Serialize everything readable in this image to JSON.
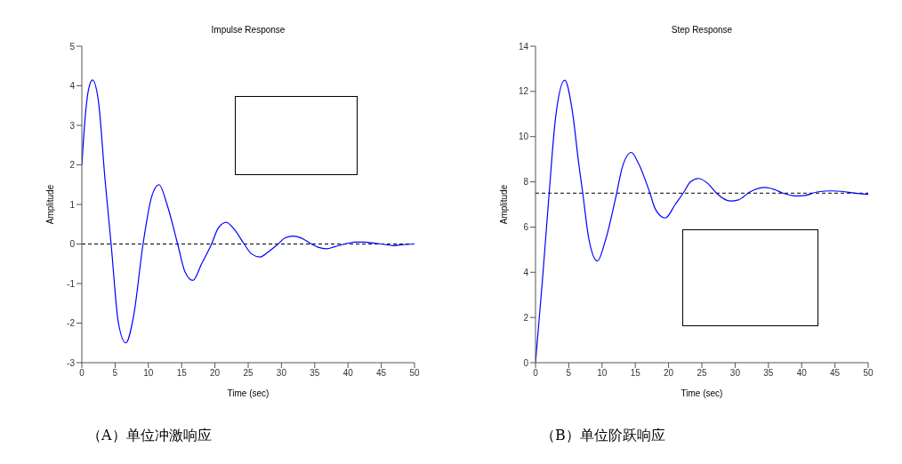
{
  "chart_data": [
    {
      "type": "line",
      "title": "Impulse Response",
      "xlabel": "Time (sec)",
      "ylabel": "Amplitude",
      "annotations": [
        "（A）单位冲激响应"
      ],
      "x": [
        0,
        0.5,
        1,
        1.6,
        2.5,
        3.5,
        4.4,
        5.5,
        6.6,
        7.8,
        9.2,
        10.5,
        11.6,
        12.8,
        14.4,
        15.5,
        16.7,
        18,
        19.5,
        20.5,
        21.7,
        23,
        24.4,
        25.5,
        26.8,
        28,
        29.5,
        30.5,
        31.8,
        33,
        34.5,
        35.5,
        36.8,
        38,
        39.5,
        41,
        42.5,
        44,
        45,
        46.8,
        48,
        50
      ],
      "series": [
        {
          "color": "#0000ff",
          "values": [
            2.0,
            3.2,
            3.9,
            4.15,
            3.6,
            1.6,
            0,
            -2.0,
            -2.5,
            -1.8,
            0,
            1.2,
            1.5,
            1.0,
            0,
            -0.7,
            -0.92,
            -0.5,
            0,
            0.4,
            0.55,
            0.35,
            0,
            -0.25,
            -0.33,
            -0.2,
            0,
            0.15,
            0.2,
            0.15,
            0,
            -0.08,
            -0.12,
            -0.07,
            0,
            0.05,
            0.05,
            0.02,
            0,
            -0.04,
            -0.02,
            0
          ]
        }
      ],
      "xlim": [
        0,
        50
      ],
      "xticks": [
        0,
        5,
        10,
        15,
        20,
        25,
        30,
        35,
        40,
        45,
        50
      ],
      "ylim": [
        -3,
        5
      ],
      "yticks": [
        -3,
        -2,
        -1,
        0,
        1,
        2,
        3,
        4,
        5
      ],
      "ref_lines": [
        {
          "axis": "y",
          "value": 0,
          "color": "#000000",
          "line_style": "dashed"
        }
      ],
      "grid": false,
      "legend": false,
      "marker": "none",
      "line_style": "solid"
    },
    {
      "type": "line",
      "title": "Step Response",
      "xlabel": "Time (sec)",
      "ylabel": "Amplitude",
      "annotations": [
        "（B）单位阶跃响应"
      ],
      "x": [
        0,
        1,
        2,
        3,
        4.4,
        5.5,
        6.5,
        7.1,
        8,
        9.3,
        10.5,
        12.2,
        13,
        14.4,
        15.5,
        17.2,
        18,
        19.5,
        21,
        22.2,
        23.3,
        24.5,
        26,
        27.2,
        29.3,
        30.5,
        32.2,
        34.5,
        36,
        37.2,
        39,
        40.5,
        42.3,
        44.5,
        46,
        48,
        50
      ],
      "series": [
        {
          "color": "#0000ff",
          "values": [
            0,
            3.5,
            7.3,
            10.8,
            12.5,
            11.2,
            8.8,
            7.5,
            5.5,
            4.5,
            5.4,
            7.5,
            8.6,
            9.3,
            8.8,
            7.5,
            6.8,
            6.4,
            7.0,
            7.5,
            8.0,
            8.15,
            7.9,
            7.5,
            7.15,
            7.2,
            7.55,
            7.75,
            7.65,
            7.5,
            7.38,
            7.4,
            7.55,
            7.6,
            7.58,
            7.5,
            7.45
          ]
        }
      ],
      "xlim": [
        0,
        50
      ],
      "xticks": [
        0,
        5,
        10,
        15,
        20,
        25,
        30,
        35,
        40,
        45,
        50
      ],
      "ylim": [
        0,
        14
      ],
      "yticks": [
        0,
        2,
        4,
        6,
        8,
        10,
        12,
        14
      ],
      "ref_lines": [
        {
          "axis": "y",
          "value": 7.5,
          "color": "#000000",
          "line_style": "dashed"
        }
      ],
      "grid": false,
      "legend": false,
      "marker": "none",
      "line_style": "solid"
    }
  ]
}
